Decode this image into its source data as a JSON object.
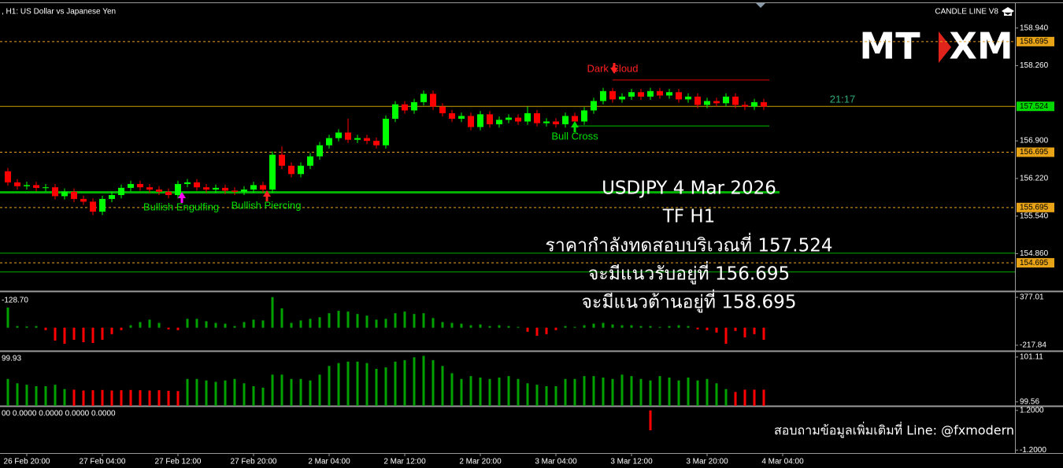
{
  "header": {
    "symbol": ", H1: US Dollar vs Japanese Yen",
    "indicator": "CANDLE LINE V8",
    "logo": [
      "MT",
      "XM"
    ],
    "timer": "21:17"
  },
  "overlay": {
    "lines": [
      "USDJPY 4 Mar 2026",
      "TF H1",
      "ราคากำลังทดสอบบริเวณที่ 157.524",
      "จะมีแนวรับอยู่ที่ 156.695",
      "จะมีแนวต้านอยู่ที่ 158.695"
    ],
    "contact": "สอบถามข้อมูลเพิ่มเติมที่ Line: @fxmodern"
  },
  "chart_data": [
    {
      "type": "candlestick",
      "categories": [
        null,
        null,
        "26 Feb 20:00",
        null,
        null,
        null,
        null,
        null,
        null,
        null,
        "27 Feb 04:00",
        null,
        null,
        null,
        null,
        null,
        null,
        null,
        "27 Feb 12:00",
        null,
        null,
        null,
        null,
        null,
        null,
        null,
        "27 Feb 20:00",
        null,
        null,
        null,
        null,
        null,
        null,
        null,
        "2 Mar 04:00",
        null,
        null,
        null,
        null,
        null,
        null,
        null,
        "2 Mar 12:00",
        null,
        null,
        null,
        null,
        null,
        null,
        null,
        "2 Mar 20:00",
        null,
        null,
        null,
        null,
        null,
        null,
        null,
        "3 Mar 04:00",
        null,
        null,
        null,
        null,
        null,
        null,
        null,
        "3 Mar 12:00",
        null,
        null,
        null,
        null,
        null,
        null,
        null,
        "3 Mar 20:00",
        null,
        null,
        null,
        null,
        null,
        null,
        null,
        "4 Mar 04:00"
      ],
      "ohlc": [
        [
          156.35,
          156.41,
          156.09,
          156.15
        ],
        [
          156.15,
          156.21,
          156.02,
          156.08
        ],
        [
          156.08,
          156.16,
          156.02,
          156.1
        ],
        [
          156.1,
          156.16,
          155.99,
          156.05
        ],
        [
          156.05,
          156.12,
          155.99,
          156.06
        ],
        [
          156.06,
          156.12,
          155.84,
          155.9
        ],
        [
          155.9,
          156.04,
          155.84,
          155.98
        ],
        [
          155.98,
          156.04,
          155.79,
          155.85
        ],
        [
          155.85,
          155.91,
          155.74,
          155.8
        ],
        [
          155.8,
          155.86,
          155.56,
          155.62
        ],
        [
          155.62,
          155.91,
          155.56,
          155.85
        ],
        [
          155.85,
          155.98,
          155.79,
          155.92
        ],
        [
          155.92,
          156.11,
          155.86,
          156.05
        ],
        [
          156.05,
          156.18,
          155.99,
          156.12
        ],
        [
          156.12,
          156.18,
          156.0,
          156.06
        ],
        [
          156.06,
          156.12,
          155.96,
          156.02
        ],
        [
          156.02,
          156.08,
          155.92,
          155.98
        ],
        [
          155.98,
          156.04,
          155.86,
          155.92
        ],
        [
          155.92,
          156.18,
          155.86,
          156.12
        ],
        [
          156.12,
          156.21,
          156.06,
          156.15
        ],
        [
          156.15,
          156.21,
          156.0,
          156.06
        ],
        [
          156.06,
          156.12,
          155.96,
          156.02
        ],
        [
          156.02,
          156.11,
          155.96,
          156.05
        ],
        [
          156.05,
          156.11,
          155.94,
          156.0
        ],
        [
          156.0,
          156.06,
          155.92,
          155.98
        ],
        [
          155.98,
          156.08,
          155.92,
          156.02
        ],
        [
          156.02,
          156.16,
          155.96,
          156.1
        ],
        [
          156.1,
          156.16,
          155.96,
          156.02
        ],
        [
          156.02,
          156.71,
          155.96,
          156.65
        ],
        [
          156.65,
          156.8,
          156.39,
          156.45
        ],
        [
          156.45,
          156.51,
          156.24,
          156.3
        ],
        [
          156.3,
          156.51,
          156.24,
          156.45
        ],
        [
          156.45,
          156.68,
          156.39,
          156.62
        ],
        [
          156.62,
          156.88,
          156.56,
          156.82
        ],
        [
          156.82,
          157.01,
          156.76,
          156.95
        ],
        [
          156.95,
          157.11,
          156.89,
          157.05
        ],
        [
          157.05,
          157.3,
          156.86,
          156.92
        ],
        [
          156.92,
          157.01,
          156.86,
          156.95
        ],
        [
          156.95,
          157.01,
          156.84,
          156.9
        ],
        [
          156.9,
          156.96,
          156.76,
          156.82
        ],
        [
          156.82,
          157.36,
          156.76,
          157.3
        ],
        [
          157.3,
          157.62,
          157.24,
          157.56
        ],
        [
          157.56,
          157.62,
          157.39,
          157.45
        ],
        [
          157.45,
          157.66,
          157.39,
          157.6
        ],
        [
          157.6,
          157.81,
          157.54,
          157.75
        ],
        [
          157.75,
          157.81,
          157.46,
          157.52
        ],
        [
          157.52,
          157.58,
          157.34,
          157.4
        ],
        [
          157.4,
          157.46,
          157.24,
          157.3
        ],
        [
          157.3,
          157.41,
          157.24,
          157.35
        ],
        [
          157.35,
          157.41,
          157.09,
          157.15
        ],
        [
          157.15,
          157.44,
          157.09,
          157.38
        ],
        [
          157.38,
          157.44,
          157.14,
          157.2
        ],
        [
          157.2,
          157.34,
          157.14,
          157.28
        ],
        [
          157.28,
          157.38,
          157.22,
          157.32
        ],
        [
          157.32,
          157.38,
          157.19,
          157.25
        ],
        [
          157.25,
          157.52,
          157.19,
          157.4
        ],
        [
          157.4,
          157.46,
          157.16,
          157.22
        ],
        [
          157.22,
          157.31,
          157.16,
          157.25
        ],
        [
          157.25,
          157.31,
          157.14,
          157.2
        ],
        [
          157.2,
          157.41,
          157.14,
          157.35
        ],
        [
          157.35,
          157.41,
          157.19,
          157.25
        ],
        [
          157.25,
          157.51,
          157.19,
          157.45
        ],
        [
          157.45,
          157.68,
          157.39,
          157.62
        ],
        [
          157.62,
          157.86,
          157.56,
          157.8
        ],
        [
          157.8,
          157.86,
          157.59,
          157.65
        ],
        [
          157.65,
          157.76,
          157.59,
          157.7
        ],
        [
          157.7,
          157.84,
          157.64,
          157.78
        ],
        [
          157.78,
          157.84,
          157.64,
          157.7
        ],
        [
          157.7,
          157.86,
          157.64,
          157.8
        ],
        [
          157.8,
          157.86,
          157.66,
          157.72
        ],
        [
          157.72,
          157.84,
          157.66,
          157.78
        ],
        [
          157.78,
          157.84,
          157.59,
          157.65
        ],
        [
          157.65,
          157.76,
          157.59,
          157.7
        ],
        [
          157.7,
          157.76,
          157.49,
          157.55
        ],
        [
          157.55,
          157.68,
          157.49,
          157.62
        ],
        [
          157.62,
          157.68,
          157.52,
          157.58
        ],
        [
          157.58,
          157.76,
          157.52,
          157.7
        ],
        [
          157.7,
          157.76,
          157.49,
          157.55
        ],
        [
          157.55,
          157.61,
          157.46,
          157.52
        ],
        [
          157.52,
          157.66,
          157.46,
          157.6
        ],
        [
          157.6,
          157.66,
          157.46,
          157.52
        ],
        null,
        null
      ],
      "up_color": "#00ff00",
      "down_color": "#ff0000",
      "ylim": [
        154.185,
        159.39
      ],
      "yticks": [
        {
          "value": 158.94,
          "label": "158.940"
        },
        {
          "value": 158.26,
          "label": "158.260"
        },
        {
          "value": 156.9,
          "label": "156.900"
        },
        {
          "value": 156.22,
          "label": "156.220"
        },
        {
          "value": 155.54,
          "label": "155.540"
        },
        {
          "value": 154.86,
          "label": "154.860"
        }
      ],
      "levels": [
        158.695,
        156.695,
        155.695,
        154.695
      ],
      "level_color": "#e8a317",
      "price_line": 157.524,
      "price_line_color": "#c8a000",
      "support_lines": [
        155.97,
        154.87,
        154.53
      ],
      "support_color": "#00b000",
      "resistance_line": 158.0,
      "signal_support_line": 157.17,
      "annotations": [
        {
          "text": "Dark Cloud",
          "color": "#ff2020"
        },
        {
          "text": "Bull Cross",
          "color": "#00e000"
        },
        {
          "text": "Bullish Engulfing",
          "color": "#00e000"
        },
        {
          "text": "Bullish Piercing",
          "color": "#00e000"
        }
      ]
    },
    {
      "type": "histogram",
      "label": "-128.70",
      "values": [
        250,
        20,
        15,
        20,
        -30,
        -160,
        -200,
        -150,
        -180,
        -190,
        -150,
        -80,
        -30,
        30,
        70,
        100,
        60,
        -20,
        -30,
        110,
        110,
        80,
        60,
        50,
        20,
        70,
        100,
        90,
        380,
        240,
        60,
        90,
        110,
        130,
        180,
        210,
        200,
        170,
        150,
        100,
        110,
        180,
        200,
        170,
        180,
        120,
        70,
        60,
        50,
        30,
        40,
        20,
        30,
        20,
        10,
        -50,
        -100,
        -80,
        -30,
        20,
        10,
        30,
        50,
        60,
        40,
        30,
        30,
        20,
        20,
        10,
        20,
        30,
        20,
        -20,
        -30,
        -60,
        -200,
        -40,
        -120,
        -80,
        -150,
        null,
        null
      ],
      "up_color": "#00a000",
      "down_color": "#ff0000",
      "ylim": [
        -287,
        436
      ],
      "yticks": [
        377.01,
        -217.84
      ]
    },
    {
      "type": "bar",
      "label": "99.93",
      "series": [
        {
          "color": "#00a000",
          "values": [
            100.35,
            100.2,
            100.15,
            100.1,
            100.1,
            100.15,
            100.0,
            null,
            null,
            null,
            null,
            null,
            null,
            null,
            null,
            null,
            null,
            null,
            null,
            100.35,
            100.35,
            100.3,
            100.25,
            100.3,
            100.35,
            100.2,
            100.1,
            100.05,
            100.5,
            100.5,
            100.35,
            100.35,
            100.3,
            100.5,
            100.8,
            100.9,
            100.95,
            100.95,
            100.9,
            100.7,
            100.75,
            100.95,
            101.0,
            101.1,
            101.15,
            101.0,
            100.8,
            100.55,
            100.35,
            100.45,
            100.4,
            100.35,
            100.4,
            100.45,
            100.35,
            100.2,
            100.15,
            100.1,
            100.1,
            100.35,
            100.35,
            100.45,
            100.45,
            100.4,
            100.35,
            100.5,
            100.45,
            100.35,
            100.3,
            100.45,
            100.4,
            100.3,
            100.4,
            100.3,
            100.35,
            100.2,
            100.0,
            null,
            null,
            null,
            null,
            null,
            null
          ]
        },
        {
          "color": "#ff0000",
          "values": [
            null,
            null,
            null,
            null,
            null,
            null,
            null,
            99.98,
            99.95,
            99.96,
            99.97,
            99.95,
            99.96,
            99.97,
            99.96,
            99.95,
            99.96,
            99.94,
            99.93,
            null,
            null,
            null,
            null,
            null,
            null,
            null,
            null,
            null,
            null,
            null,
            null,
            null,
            null,
            null,
            null,
            null,
            null,
            null,
            null,
            null,
            null,
            null,
            null,
            null,
            null,
            null,
            null,
            null,
            null,
            null,
            null,
            null,
            null,
            null,
            null,
            null,
            null,
            null,
            null,
            null,
            null,
            null,
            null,
            null,
            null,
            null,
            null,
            null,
            null,
            null,
            null,
            null,
            null,
            null,
            null,
            null,
            null,
            99.9,
            99.98,
            99.98,
            99.98,
            null,
            null
          ]
        }
      ],
      "ylim": [
        99.42,
        101.27
      ],
      "yticks": [
        101.11,
        99.56
      ]
    },
    {
      "type": "bar",
      "label": "00 0.0000 0.0000 0.0000 0.0000",
      "values": [
        null,
        null,
        null,
        null,
        null,
        null,
        null,
        null,
        null,
        null,
        null,
        null,
        null,
        null,
        null,
        null,
        null,
        null,
        null,
        null,
        null,
        null,
        null,
        null,
        null,
        null,
        null,
        null,
        null,
        null,
        null,
        null,
        null,
        null,
        null,
        null,
        null,
        null,
        null,
        null,
        null,
        null,
        null,
        null,
        null,
        null,
        null,
        null,
        null,
        null,
        null,
        null,
        null,
        null,
        null,
        null,
        null,
        null,
        null,
        null,
        null,
        null,
        null,
        null,
        null,
        null,
        null,
        null,
        1.2,
        null,
        null,
        null,
        null,
        null,
        null,
        null,
        null,
        null,
        null,
        null,
        null,
        null,
        null
      ],
      "color": "#ff0000",
      "ylim": [
        -1.38,
        1.38
      ],
      "yticks": [
        {
          "value": 1.2,
          "label": "1.2000"
        },
        {
          "value": -1.2,
          "label": "-1.2000"
        }
      ]
    }
  ]
}
